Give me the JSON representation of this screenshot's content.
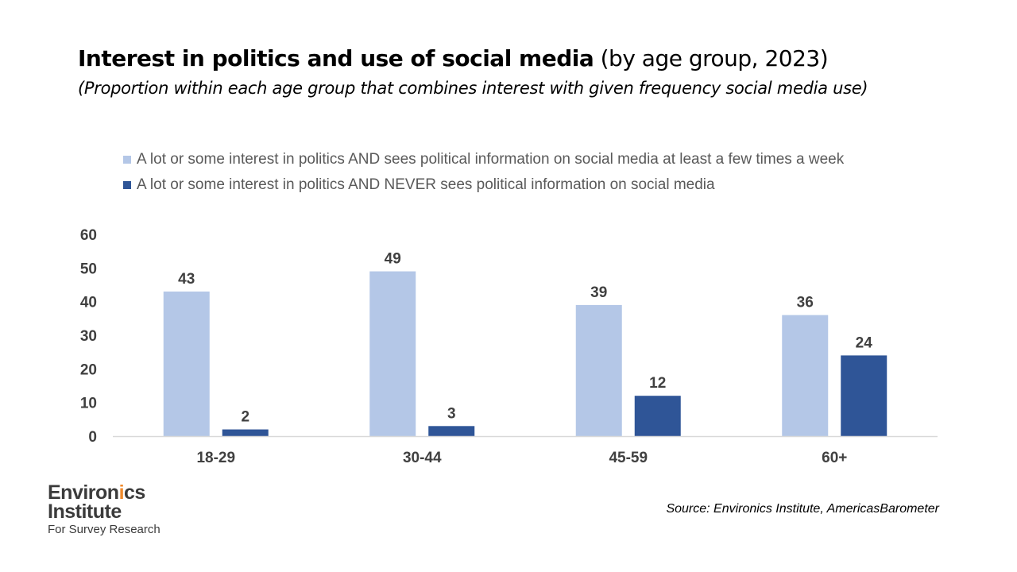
{
  "title_bold": "Interest in politics and use of social media",
  "title_rest": " (by age group, 2023)",
  "subtitle": "(Proportion within each age group that combines interest with given frequency social media use)",
  "logo": {
    "line1_a": "Environ",
    "line1_accent": "i",
    "line1_b": "cs",
    "line2": "Institute",
    "line3": "For Survey Research"
  },
  "source": "Source: Environics Institute, AmericasBarometer",
  "colors": {
    "series1": "#b4c7e7",
    "series2": "#2f5597",
    "axis": "#d9d9d9",
    "text": "#404040",
    "logo_accent": "#f08a2c"
  },
  "chart_data": {
    "type": "bar",
    "categories": [
      "18-29",
      "30-44",
      "45-59",
      "60+"
    ],
    "series": [
      {
        "name": "A lot or some interest in politics AND sees political information on social media at least a few times a week",
        "values": [
          43,
          49,
          39,
          36
        ]
      },
      {
        "name": "A lot or some interest in politics AND NEVER sees political information on social media",
        "values": [
          2,
          3,
          12,
          24
        ]
      }
    ],
    "ylim": [
      0,
      60
    ],
    "yticks": [
      0,
      10,
      20,
      30,
      40,
      50,
      60
    ],
    "grid": false,
    "legend_position": "top",
    "data_labels": true
  }
}
